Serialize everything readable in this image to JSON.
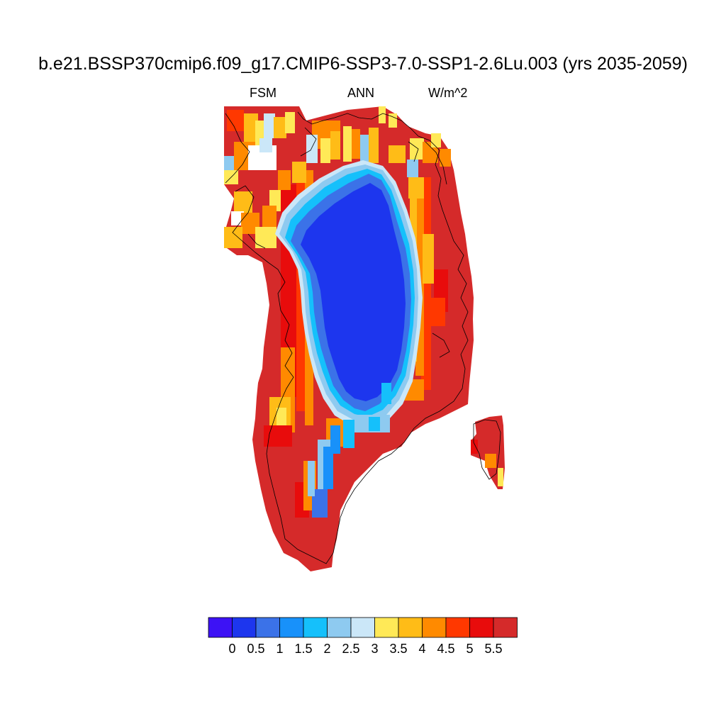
{
  "title": "b.e21.BSSP370cmip6.f09_g17.CMIP6-SSP3-7.0-SSP1-2.6Lu.003 (yrs 2035-2059)",
  "subtitle_left": "FSM",
  "subtitle_center": "ANN",
  "subtitle_right": "W/m^2",
  "colorbar": {
    "colors": [
      "#3d12f5",
      "#1d36ee",
      "#3b72e8",
      "#1891fa",
      "#15c0fb",
      "#8ecaf0",
      "#cbe7f8",
      "#ffe957",
      "#ffbc17",
      "#ff8a00",
      "#ff3800",
      "#e80c0c",
      "#d52a2a"
    ],
    "labels": [
      "0",
      "0.5",
      "1",
      "1.5",
      "2",
      "2.5",
      "3",
      "3.5",
      "4",
      "4.5",
      "5",
      "5.5"
    ]
  },
  "map_data": {
    "region": "Greenland",
    "variable": "FSM",
    "units": "W/m^2",
    "season": "ANN",
    "interior_value_range": [
      0.0,
      0.5
    ],
    "coastal_value_range": [
      5.5,
      6.0
    ]
  }
}
